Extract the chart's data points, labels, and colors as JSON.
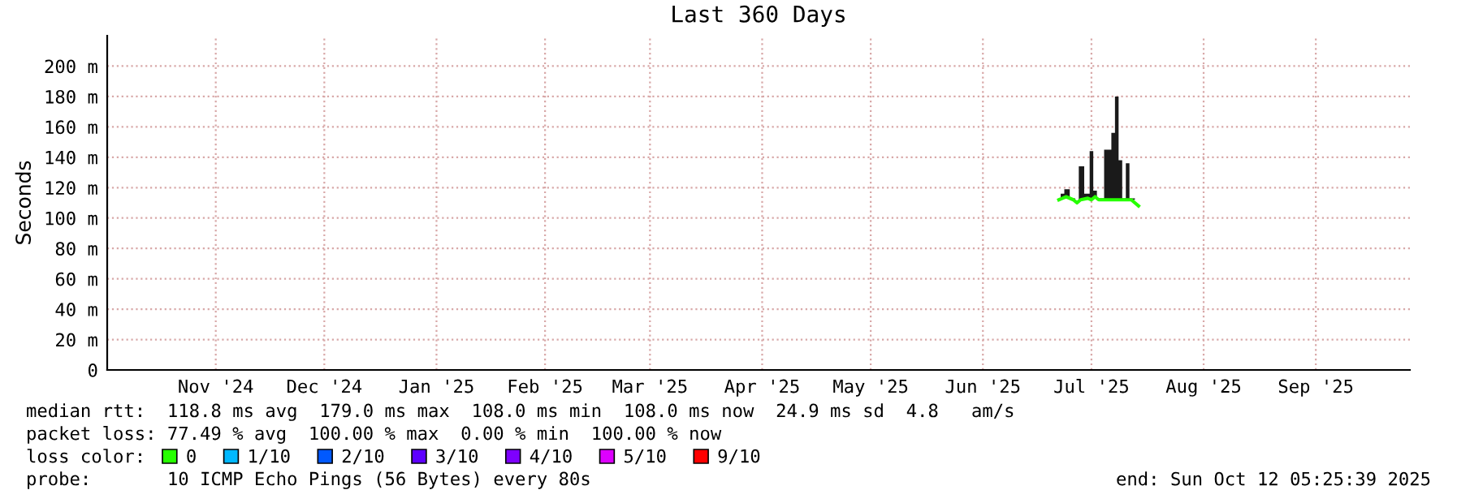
{
  "chart_data": {
    "type": "line",
    "title": "Last 360 Days",
    "ylabel": "Seconds",
    "xlim": [
      "2024-10-17",
      "2025-10-12"
    ],
    "xticks": [
      {
        "value": "2024-11-16",
        "label": "Nov '24"
      },
      {
        "value": "2024-12-16",
        "label": "Dec '24"
      },
      {
        "value": "2025-01-16",
        "label": "Jan '25"
      },
      {
        "value": "2025-02-15",
        "label": "Feb '25"
      },
      {
        "value": "2025-03-16",
        "label": "Mar '25"
      },
      {
        "value": "2025-04-16",
        "label": "Apr '25"
      },
      {
        "value": "2025-05-16",
        "label": "May '25"
      },
      {
        "value": "2025-06-16",
        "label": "Jun '25"
      },
      {
        "value": "2025-07-16",
        "label": "Jul '25"
      },
      {
        "value": "2025-08-16",
        "label": "Aug '25"
      },
      {
        "value": "2025-09-16",
        "label": "Sep '25"
      }
    ],
    "ylim": [
      0,
      220
    ],
    "yticks": [
      0,
      {
        "value": 20,
        "label": "20 m"
      },
      {
        "value": 40,
        "label": "40 m"
      },
      {
        "value": 60,
        "label": "60 m"
      },
      {
        "value": 80,
        "label": "80 m"
      },
      {
        "value": 100,
        "label": "100 m"
      },
      {
        "value": 120,
        "label": "120 m"
      },
      {
        "value": 140,
        "label": "140 m"
      },
      {
        "value": 160,
        "label": "160 m"
      },
      {
        "value": 180,
        "label": "180 m"
      },
      {
        "value": 200,
        "label": "200 m"
      }
    ],
    "grid": true,
    "legend": "bottom",
    "legend_title": "loss color:",
    "series": [
      {
        "name": "0",
        "color": "#26ff00",
        "x": [
          "2025-07-07",
          "2025-07-08",
          "2025-07-09",
          "2025-07-11",
          "2025-07-12",
          "2025-07-13",
          "2025-07-15",
          "2025-07-16",
          "2025-07-17",
          "2025-07-18",
          "2025-07-21",
          "2025-07-22",
          "2025-07-23",
          "2025-07-24",
          "2025-07-25",
          "2025-07-26",
          "2025-07-27",
          "2025-07-29"
        ],
        "values": [
          112,
          113,
          114,
          112,
          110,
          112,
          113,
          112,
          114,
          112,
          112,
          112,
          112,
          112,
          112,
          112,
          112,
          108
        ],
        "lower": [
          112,
          113,
          114,
          112,
          110,
          112,
          113,
          112,
          114,
          112,
          112,
          112,
          112,
          112,
          112,
          112,
          112,
          108
        ],
        "upper": [
          113,
          116,
          119,
          113,
          111,
          134,
          116,
          144,
          118,
          113,
          145,
          156,
          180,
          138,
          113,
          136,
          113,
          108
        ]
      },
      {
        "name": "1/10",
        "color": "#00b8ff"
      },
      {
        "name": "2/10",
        "color": "#0059ff"
      },
      {
        "name": "3/10",
        "color": "#5e00ff"
      },
      {
        "name": "4/10",
        "color": "#7e00ff"
      },
      {
        "name": "5/10",
        "color": "#dd00ff"
      },
      {
        "name": "9/10",
        "color": "#ff0000"
      }
    ],
    "annotations": [
      "median rtt:  118.8 ms avg  179.0 ms max  108.0 ms min  108.0 ms now  24.9 ms sd  4.8   am/s",
      "packet loss: 77.49 % avg  100.00 % max  0.00 % min  100.00 % now",
      "probe:       10 ICMP Echo Pings (56 Bytes) every 80s",
      "end: Sun Oct 12 05:25:39 2025"
    ]
  }
}
